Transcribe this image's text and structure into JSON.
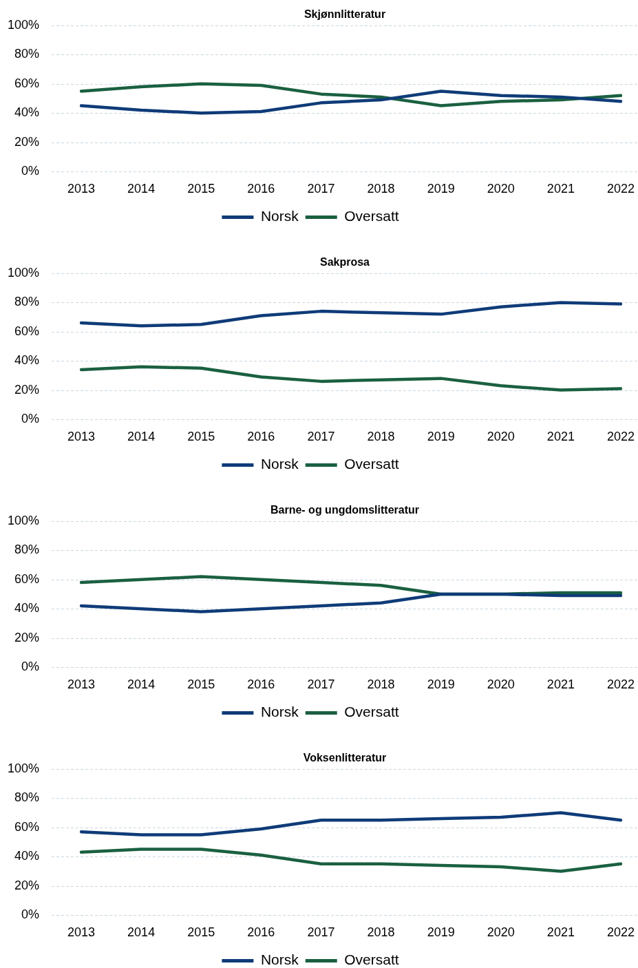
{
  "chart_data": [
    {
      "type": "line",
      "title": "Skjønnlitteratur",
      "categories": [
        "2013",
        "2014",
        "2015",
        "2016",
        "2017",
        "2018",
        "2019",
        "2020",
        "2021",
        "2022"
      ],
      "series": [
        {
          "name": "Norsk",
          "color": "#0f3b78",
          "values": [
            45,
            42,
            40,
            41,
            47,
            49,
            55,
            52,
            51,
            48
          ]
        },
        {
          "name": "Oversatt",
          "color": "#1a6040",
          "values": [
            55,
            58,
            60,
            59,
            53,
            51,
            45,
            48,
            49,
            52
          ]
        }
      ],
      "ylim": [
        0,
        100
      ],
      "yticks": [
        {
          "value": 0,
          "label": "0%"
        },
        {
          "value": 20,
          "label": "20%"
        },
        {
          "value": 40,
          "label": "40%"
        },
        {
          "value": 60,
          "label": "60%"
        },
        {
          "value": 80,
          "label": "80%"
        },
        {
          "value": 100,
          "label": "100%"
        }
      ],
      "grid": "y",
      "legend": "bottom",
      "marker": "none",
      "line_style": "solid"
    },
    {
      "type": "line",
      "title": "Sakprosa",
      "categories": [
        "2013",
        "2014",
        "2015",
        "2016",
        "2017",
        "2018",
        "2019",
        "2020",
        "2021",
        "2022"
      ],
      "series": [
        {
          "name": "Norsk",
          "color": "#0f3b78",
          "values": [
            66,
            64,
            65,
            71,
            74,
            73,
            72,
            77,
            80,
            79
          ]
        },
        {
          "name": "Oversatt",
          "color": "#1a6040",
          "values": [
            34,
            36,
            35,
            29,
            26,
            27,
            28,
            23,
            20,
            21
          ]
        }
      ],
      "ylim": [
        0,
        100
      ],
      "yticks": [
        {
          "value": 0,
          "label": "0%"
        },
        {
          "value": 20,
          "label": "20%"
        },
        {
          "value": 40,
          "label": "40%"
        },
        {
          "value": 60,
          "label": "60%"
        },
        {
          "value": 80,
          "label": "80%"
        },
        {
          "value": 100,
          "label": "100%"
        }
      ],
      "grid": "y",
      "legend": "bottom",
      "marker": "none",
      "line_style": "solid"
    },
    {
      "type": "line",
      "title": "Barne- og ungdomslitteratur",
      "categories": [
        "2013",
        "2014",
        "2015",
        "2016",
        "2017",
        "2018",
        "2019",
        "2020",
        "2021",
        "2022"
      ],
      "series": [
        {
          "name": "Norsk",
          "color": "#0f3b78",
          "values": [
            42,
            40,
            38,
            40,
            42,
            44,
            50,
            50,
            49,
            49
          ]
        },
        {
          "name": "Oversatt",
          "color": "#1a6040",
          "values": [
            58,
            60,
            62,
            60,
            58,
            56,
            50,
            50,
            51,
            51
          ]
        }
      ],
      "ylim": [
        0,
        100
      ],
      "yticks": [
        {
          "value": 0,
          "label": "0%"
        },
        {
          "value": 20,
          "label": "20%"
        },
        {
          "value": 40,
          "label": "40%"
        },
        {
          "value": 60,
          "label": "60%"
        },
        {
          "value": 80,
          "label": "80%"
        },
        {
          "value": 100,
          "label": "100%"
        }
      ],
      "grid": "y",
      "legend": "bottom",
      "marker": "none",
      "line_style": "solid"
    },
    {
      "type": "line",
      "title": "Voksenlitteratur",
      "categories": [
        "2013",
        "2014",
        "2015",
        "2016",
        "2017",
        "2018",
        "2019",
        "2020",
        "2021",
        "2022"
      ],
      "series": [
        {
          "name": "Norsk",
          "color": "#0f3b78",
          "values": [
            57,
            55,
            55,
            59,
            65,
            65,
            66,
            67,
            70,
            65
          ]
        },
        {
          "name": "Oversatt",
          "color": "#1a6040",
          "values": [
            43,
            45,
            45,
            41,
            35,
            35,
            34,
            33,
            30,
            35
          ]
        }
      ],
      "ylim": [
        0,
        100
      ],
      "yticks": [
        {
          "value": 0,
          "label": "0%"
        },
        {
          "value": 20,
          "label": "20%"
        },
        {
          "value": 40,
          "label": "40%"
        },
        {
          "value": 60,
          "label": "60%"
        },
        {
          "value": 80,
          "label": "80%"
        },
        {
          "value": 100,
          "label": "100%"
        }
      ],
      "grid": "y",
      "legend": "bottom",
      "marker": "none",
      "line_style": "solid"
    }
  ]
}
